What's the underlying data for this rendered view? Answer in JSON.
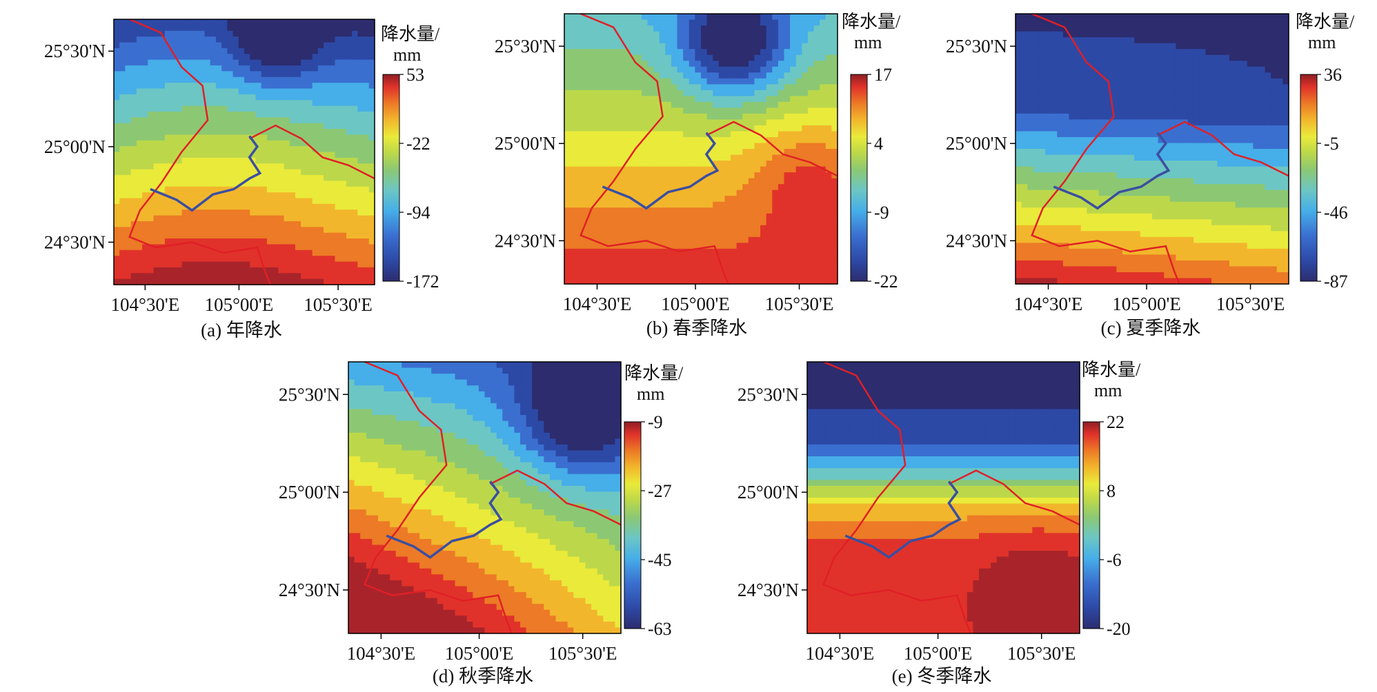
{
  "figure": {
    "panels": [
      {
        "id": "a",
        "caption": "(a) 年降水",
        "legend_title_line1": "降水量/",
        "legend_title_line2": "mm",
        "colorbar_ticks": [
          "53",
          "-22",
          "-94",
          "-172"
        ],
        "lat_labels": [
          "25°30'N",
          "25°00'N",
          "24°30'N"
        ],
        "lon_labels": [
          "104°30'E",
          "105°00'E",
          "105°30'E"
        ],
        "min_color": "#2b3a8f",
        "max_color": "#c0282e"
      },
      {
        "id": "b",
        "caption": "(b) 春季降水",
        "legend_title_line1": "降水量/",
        "legend_title_line2": "mm",
        "colorbar_ticks": [
          "17",
          "4",
          "-9",
          "-22"
        ],
        "lat_labels": [
          "25°30'N",
          "25°00'N",
          "24°30'N"
        ],
        "lon_labels": [
          "104°30'E",
          "105°00'E",
          "105°30'E"
        ],
        "min_color": "#2b3a8f",
        "max_color": "#c0282e"
      },
      {
        "id": "c",
        "caption": "(c) 夏季降水",
        "legend_title_line1": "降水量/",
        "legend_title_line2": "mm",
        "colorbar_ticks": [
          "36",
          "-5",
          "-46",
          "-87"
        ],
        "lat_labels": [
          "25°30'N",
          "25°00'N",
          "24°30'N"
        ],
        "lon_labels": [
          "104°30'E",
          "105°00'E",
          "105°30'E"
        ],
        "min_color": "#2b3a8f",
        "max_color": "#c0282e"
      },
      {
        "id": "d",
        "caption": "(d) 秋季降水",
        "legend_title_line1": "降水量/",
        "legend_title_line2": "mm",
        "colorbar_ticks": [
          "-9",
          "-27",
          "-45",
          "-63"
        ],
        "lat_labels": [
          "25°30'N",
          "25°00'N",
          "24°30'N"
        ],
        "lon_labels": [
          "104°30'E",
          "105°00'E",
          "105°30'E"
        ],
        "min_color": "#2b3a8f",
        "max_color": "#c0282e"
      },
      {
        "id": "e",
        "caption": "(e) 冬季降水",
        "legend_title_line1": "降水量/",
        "legend_title_line2": "mm",
        "colorbar_ticks": [
          "22",
          "8",
          "-6",
          "-20"
        ],
        "lat_labels": [
          "25°30'N",
          "25°00'N",
          "24°30'N"
        ],
        "lon_labels": [
          "104°30'E",
          "105°00'E",
          "105°30'E"
        ],
        "min_color": "#2b3a8f",
        "max_color": "#c0282e"
      }
    ],
    "colormap": [
      "#2c2c6e",
      "#2d49a6",
      "#3a6fd0",
      "#46aee8",
      "#6cc6c4",
      "#8cc873",
      "#bcd84a",
      "#eaea3a",
      "#f2b62c",
      "#ec7a26",
      "#e0322a",
      "#a8242a"
    ],
    "boundary_color": "#e01f26",
    "river_color": "#3b4fa0"
  }
}
